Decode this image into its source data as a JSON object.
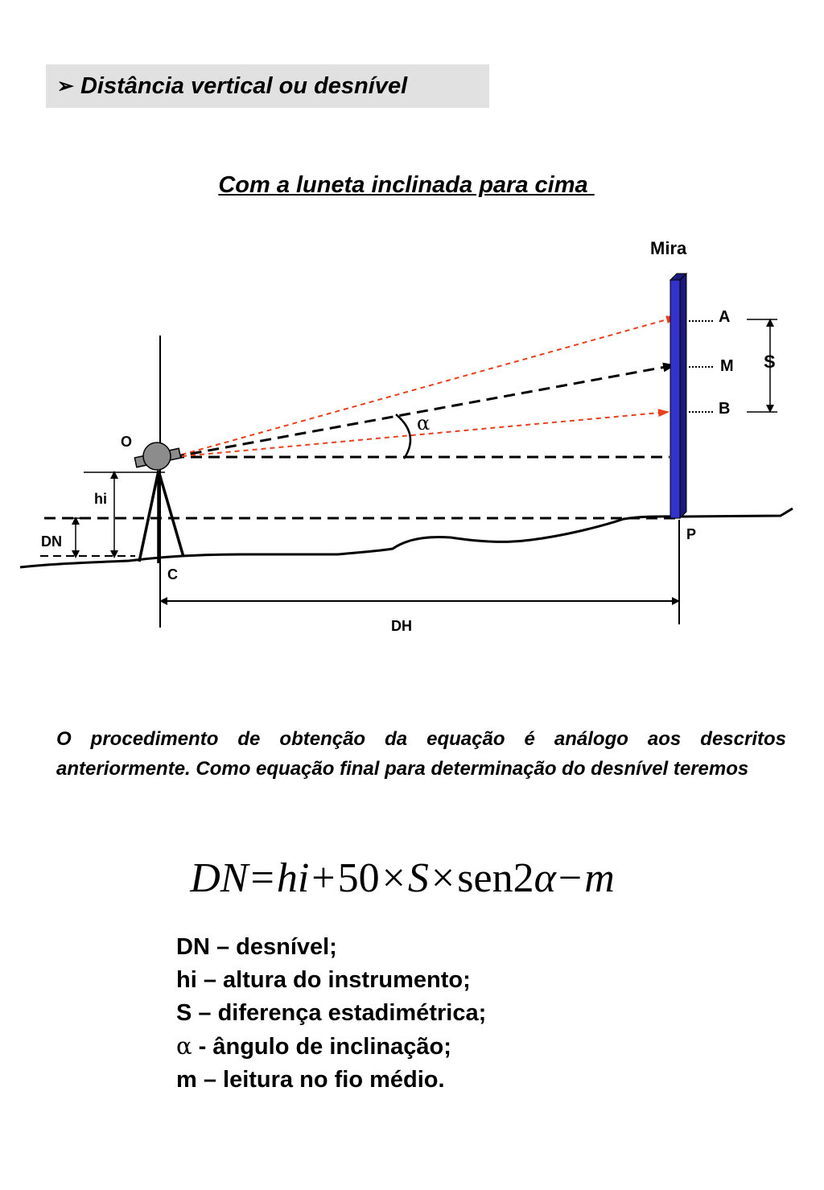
{
  "header": {
    "arrow_glyph": "➢",
    "title": "Distância vertical ou desnível"
  },
  "subtitle": "Com a luneta inclinada para cima ",
  "diagram": {
    "labels": {
      "mira": "Mira",
      "a": "A",
      "m": "M",
      "b": "B",
      "s": "S",
      "alpha": "α",
      "o": "O",
      "hi": "hi",
      "dn": "DN",
      "c": "C",
      "p": "P",
      "dh": "DH"
    },
    "colors": {
      "rod": "#3333cc",
      "rod_dark": "#1a1a7a",
      "sight_red": "#e8401c",
      "line": "#000000",
      "instrument": "#8c8c8c"
    }
  },
  "paragraph": "O procedimento de obtenção da equação é análogo aos descritos anteriormente. Como equação final para determinação do desnível teremos",
  "formula": {
    "lhs": "DN",
    "eq": "=",
    "hi": "hi",
    "plus": "+",
    "fifty": "50",
    "times1": "×",
    "s": "S",
    "times2": "×",
    "sen": "sen",
    "two": "2",
    "alpha": "α",
    "minus": "−",
    "m": "m"
  },
  "legend": {
    "items": [
      {
        "symbol": "",
        "text": "DN – desnível;"
      },
      {
        "symbol": "",
        "text": "hi – altura do instrumento;"
      },
      {
        "symbol": "",
        "text": "S – diferença estadimétrica;"
      },
      {
        "symbol": "α",
        "text": " - ângulo de inclinação;"
      },
      {
        "symbol": "",
        "text": "m – leitura no fio médio."
      }
    ]
  }
}
